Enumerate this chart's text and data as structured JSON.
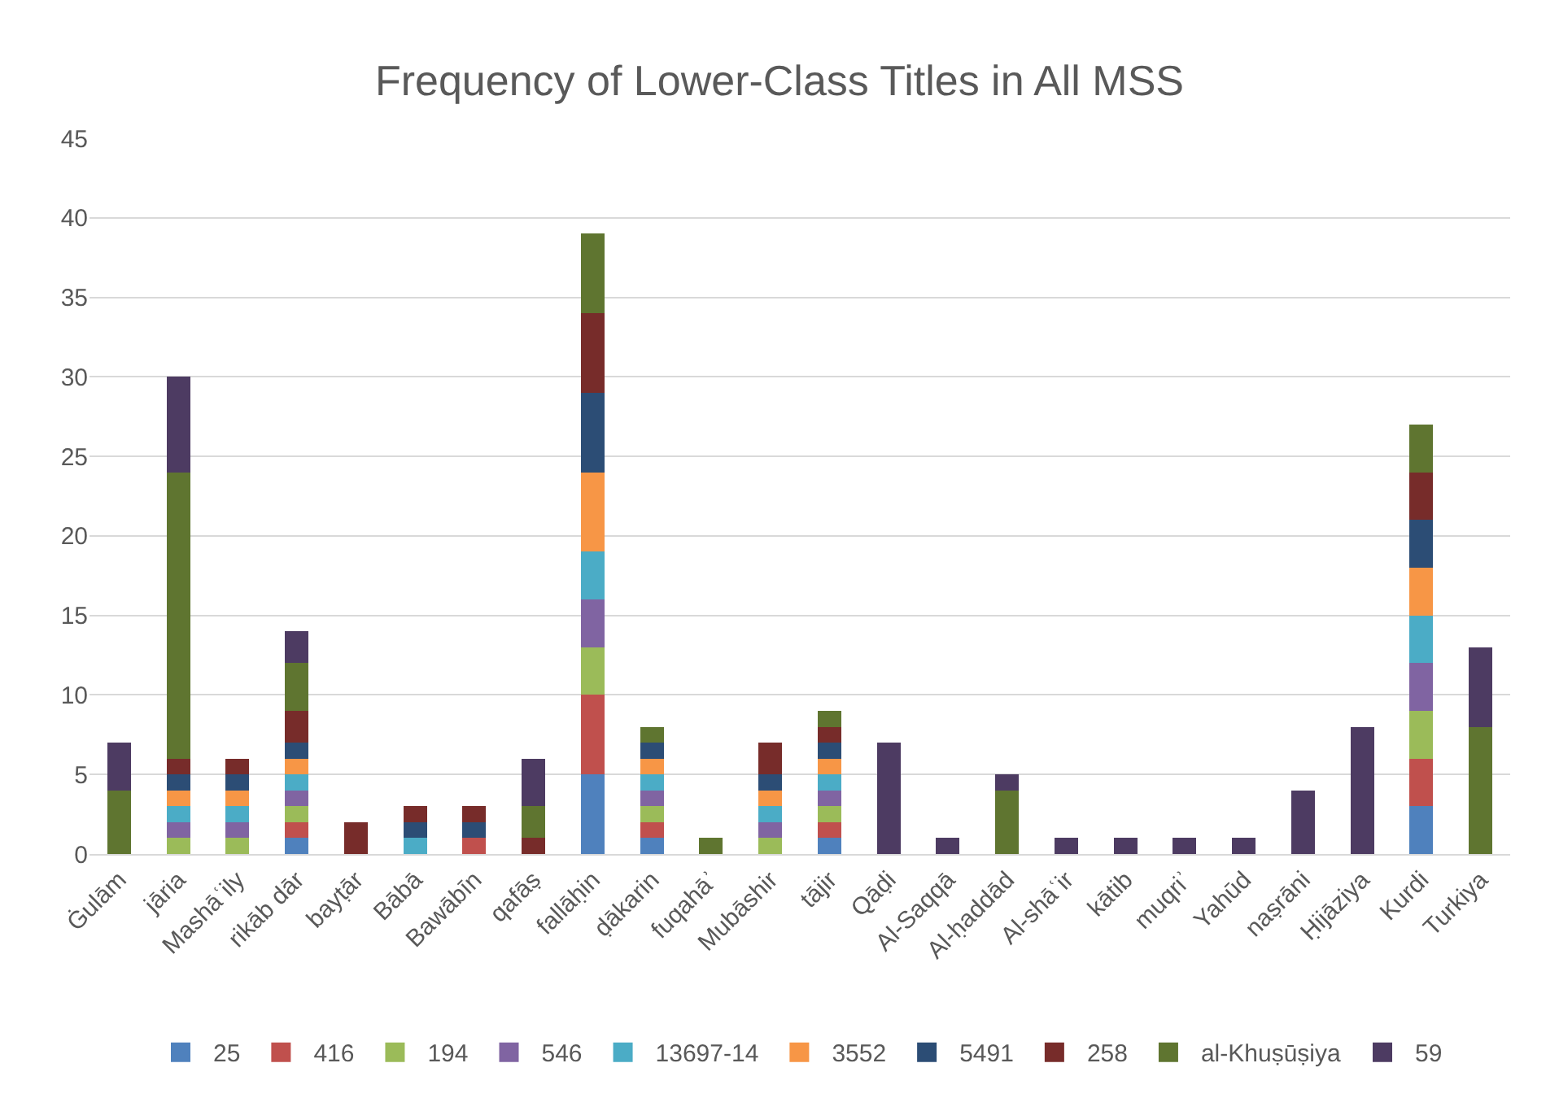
{
  "chart_data": {
    "type": "bar",
    "title": "Frequency of Lower-Class Titles in All MSS",
    "stacked": true,
    "grid": "y",
    "legend": "bottom",
    "ylim": [
      0,
      45
    ],
    "yticks": [
      0,
      5,
      10,
      15,
      20,
      25,
      30,
      35,
      40,
      45
    ],
    "categories": [
      "Ġulām",
      "jāria",
      "Mashāʿily",
      "rikāb dār",
      "bayṭār",
      "Bābā",
      "Bawābīn",
      "qafāṣ",
      "fallāḥin",
      "ḍākarin",
      "fuqahāʾ",
      "Mubāshir",
      "tājir",
      "Qāḍi",
      "Al-Saqqā",
      "Al-ḥaddād",
      "Al-shāʿir",
      "kātib",
      "muqriʾ",
      "Yahūd",
      "naṣrāni",
      "Ḥijāziya",
      "Kurdi",
      "Turkiya"
    ],
    "series": [
      {
        "name": "25",
        "color": "#4f81bd",
        "values": [
          0,
          0,
          0,
          1,
          0,
          0,
          0,
          0,
          5,
          1,
          0,
          0,
          1,
          0,
          0,
          0,
          0,
          0,
          0,
          0,
          0,
          0,
          3,
          0
        ]
      },
      {
        "name": "416",
        "color": "#c0504d",
        "values": [
          0,
          0,
          0,
          1,
          0,
          0,
          1,
          0,
          5,
          1,
          0,
          0,
          1,
          0,
          0,
          0,
          0,
          0,
          0,
          0,
          0,
          0,
          3,
          0
        ]
      },
      {
        "name": "194",
        "color": "#9bbb59",
        "values": [
          0,
          1,
          1,
          1,
          0,
          0,
          0,
          0,
          3,
          1,
          0,
          1,
          1,
          0,
          0,
          0,
          0,
          0,
          0,
          0,
          0,
          0,
          3,
          0
        ]
      },
      {
        "name": "546",
        "color": "#8064a2",
        "values": [
          0,
          1,
          1,
          1,
          0,
          0,
          0,
          0,
          3,
          1,
          0,
          1,
          1,
          0,
          0,
          0,
          0,
          0,
          0,
          0,
          0,
          0,
          3,
          0
        ]
      },
      {
        "name": "13697-14",
        "color": "#4bacc6",
        "values": [
          0,
          1,
          1,
          1,
          0,
          1,
          0,
          0,
          3,
          1,
          0,
          1,
          1,
          0,
          0,
          0,
          0,
          0,
          0,
          0,
          0,
          0,
          3,
          0
        ]
      },
      {
        "name": "3552",
        "color": "#f79646",
        "values": [
          0,
          1,
          1,
          1,
          0,
          0,
          0,
          0,
          5,
          1,
          0,
          1,
          1,
          0,
          0,
          0,
          0,
          0,
          0,
          0,
          0,
          0,
          3,
          0
        ]
      },
      {
        "name": "5491",
        "color": "#2c4d75",
        "values": [
          0,
          1,
          1,
          1,
          0,
          1,
          1,
          0,
          5,
          1,
          0,
          1,
          1,
          0,
          0,
          0,
          0,
          0,
          0,
          0,
          0,
          0,
          3,
          0
        ]
      },
      {
        "name": "258",
        "color": "#772c2a",
        "values": [
          0,
          1,
          1,
          2,
          2,
          1,
          1,
          1,
          5,
          0,
          0,
          2,
          1,
          0,
          0,
          0,
          0,
          0,
          0,
          0,
          0,
          0,
          3,
          0
        ]
      },
      {
        "name": "al-Khuṣūṣiya",
        "color": "#5f7530",
        "values": [
          4,
          18,
          0,
          3,
          0,
          0,
          0,
          2,
          5,
          1,
          1,
          0,
          1,
          0,
          0,
          4,
          0,
          0,
          0,
          0,
          0,
          0,
          3,
          8
        ]
      },
      {
        "name": "59",
        "color": "#4d3b62",
        "values": [
          3,
          6,
          0,
          2,
          0,
          0,
          0,
          3,
          0,
          0,
          0,
          0,
          0,
          7,
          1,
          1,
          1,
          1,
          1,
          1,
          4,
          8,
          0,
          5
        ]
      }
    ]
  }
}
